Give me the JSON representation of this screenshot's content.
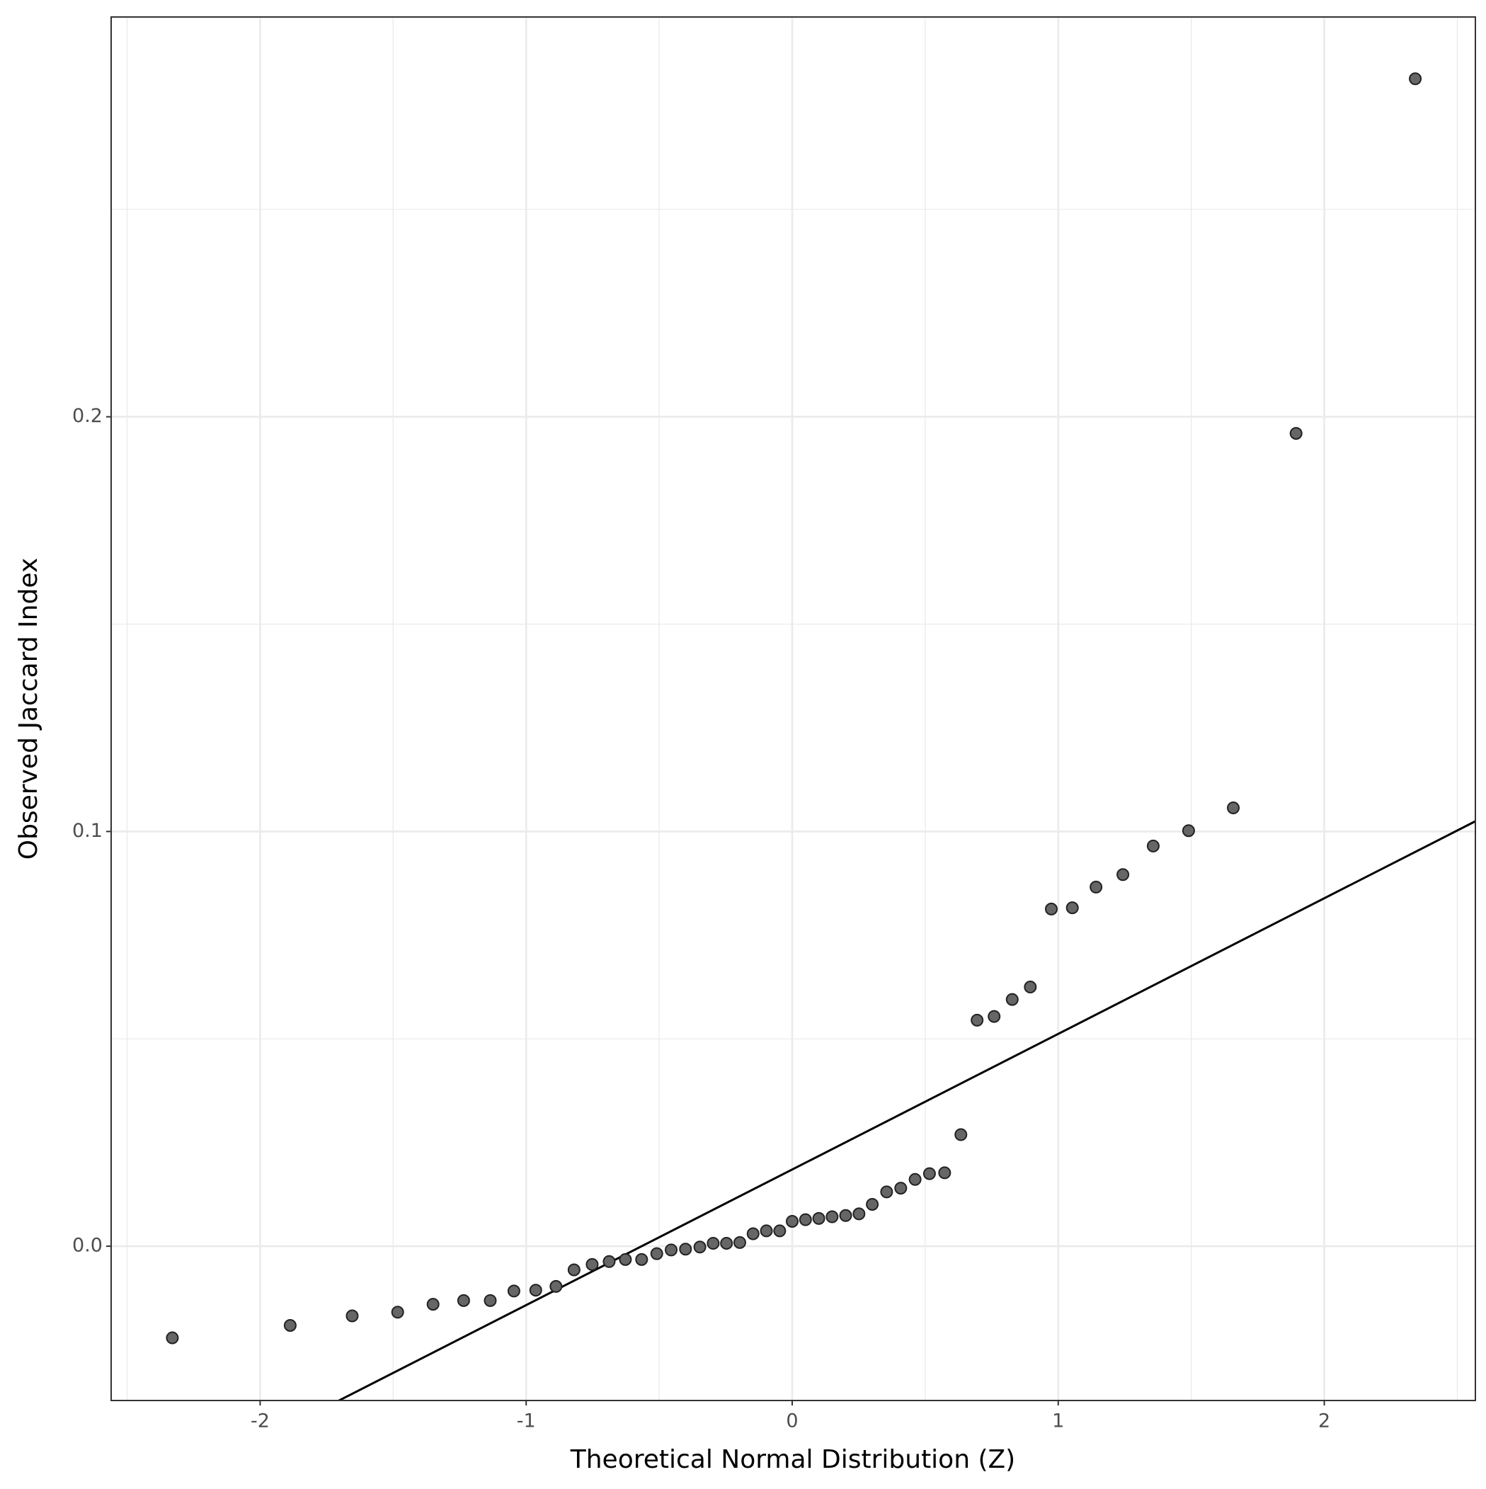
{
  "chart_data": {
    "type": "scatter",
    "x_label": "Theoretical Normal Distribution (Z)",
    "y_label": "Observed Jaccard Index",
    "x": [
      -2.33,
      -1.887,
      -1.654,
      -1.483,
      -1.35,
      -1.235,
      -1.135,
      -1.046,
      -0.964,
      -0.888,
      -0.82,
      -0.752,
      -0.688,
      -0.627,
      -0.566,
      -0.509,
      -0.455,
      -0.401,
      -0.347,
      -0.297,
      -0.247,
      -0.197,
      -0.147,
      -0.097,
      -0.047,
      0,
      0.05,
      0.1,
      0.15,
      0.201,
      0.251,
      0.301,
      0.355,
      0.408,
      0.462,
      0.516,
      0.573,
      0.634,
      0.695,
      0.759,
      0.827,
      0.895,
      0.974,
      1.053,
      1.142,
      1.243,
      1.357,
      1.49,
      1.658,
      1.894,
      2.342
    ],
    "values": [
      -0.0221,
      -0.0191,
      -0.0168,
      -0.0159,
      -0.014,
      -0.0131,
      -0.0131,
      -0.0108,
      -0.0106,
      -0.0097,
      -0.0057,
      -0.0044,
      -0.0037,
      -0.0032,
      -0.0032,
      -0.0018,
      -0.0009,
      -0.0007,
      -0.0002,
      0.0007,
      0.0007,
      0.0009,
      0.003,
      0.0037,
      0.0037,
      0.006,
      0.0064,
      0.0067,
      0.0071,
      0.0074,
      0.0078,
      0.0101,
      0.0131,
      0.014,
      0.0161,
      0.0175,
      0.0177,
      0.0269,
      0.0545,
      0.0554,
      0.0595,
      0.0625,
      0.0813,
      0.0816,
      0.0866,
      0.0896,
      0.0965,
      0.1002,
      0.1057,
      0.196,
      0.2815
    ],
    "color": "#666666",
    "reference_line": {
      "intercept": 0.0185,
      "slope": 0.0327,
      "color": "#000000"
    },
    "xlim": [
      -2.56,
      2.568
    ],
    "ylim": [
      -0.0372,
      0.2964
    ],
    "xticks": [
      -2,
      -1,
      0,
      1,
      2
    ],
    "yticks": [
      {
        "value": 0,
        "label": "0.0"
      },
      0.1,
      0.2
    ],
    "xminorticks": [
      -2.5,
      -1.5,
      -0.5,
      0.5,
      1.5,
      2.5
    ],
    "yminorticks": [
      0.05,
      0.15,
      0.25
    ],
    "grid": true
  }
}
